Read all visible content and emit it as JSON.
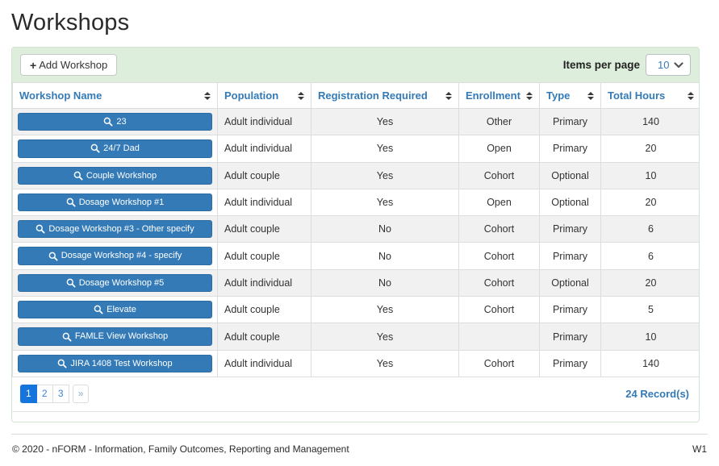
{
  "page": {
    "title": "Workshops"
  },
  "toolbar": {
    "add_button_label": "Add Workshop",
    "add_icon": "+",
    "items_per_page_label": "Items per page",
    "items_per_page_value": "10"
  },
  "table": {
    "columns": [
      "Workshop Name",
      "Population",
      "Registration Required",
      "Enrollment",
      "Type",
      "Total Hours"
    ],
    "rows": [
      {
        "name": "23",
        "population": "Adult individual",
        "registration_required": "Yes",
        "enrollment": "Other",
        "type": "Primary",
        "total_hours": "140"
      },
      {
        "name": "24/7 Dad",
        "population": "Adult individual",
        "registration_required": "Yes",
        "enrollment": "Open",
        "type": "Primary",
        "total_hours": "20"
      },
      {
        "name": "Couple Workshop",
        "population": "Adult couple",
        "registration_required": "Yes",
        "enrollment": "Cohort",
        "type": "Optional",
        "total_hours": "10"
      },
      {
        "name": "Dosage Workshop #1",
        "population": "Adult individual",
        "registration_required": "Yes",
        "enrollment": "Open",
        "type": "Optional",
        "total_hours": "20"
      },
      {
        "name": "Dosage Workshop #3 - Other specify",
        "population": "Adult couple",
        "registration_required": "No",
        "enrollment": "Cohort",
        "type": "Primary",
        "total_hours": "6"
      },
      {
        "name": "Dosage Workshop #4 - specify",
        "population": "Adult couple",
        "registration_required": "No",
        "enrollment": "Cohort",
        "type": "Primary",
        "total_hours": "6"
      },
      {
        "name": "Dosage Workshop #5",
        "population": "Adult individual",
        "registration_required": "No",
        "enrollment": "Cohort",
        "type": "Optional",
        "total_hours": "20"
      },
      {
        "name": "Elevate",
        "population": "Adult couple",
        "registration_required": "Yes",
        "enrollment": "Cohort",
        "type": "Primary",
        "total_hours": "5"
      },
      {
        "name": "FAMLE View Workshop",
        "population": "Adult couple",
        "registration_required": "Yes",
        "enrollment": "",
        "type": "Primary",
        "total_hours": "10"
      },
      {
        "name": "JIRA 1408 Test Workshop",
        "population": "Adult individual",
        "registration_required": "Yes",
        "enrollment": "Cohort",
        "type": "Primary",
        "total_hours": "140"
      }
    ]
  },
  "pagination": {
    "pages": [
      "1",
      "2",
      "3"
    ],
    "active": "1",
    "next_label": "»",
    "record_count": "24 Record(s)"
  },
  "footer": {
    "copyright": "© 2020 - nFORM - Information, Family Outcomes, Reporting and Management",
    "version": "W1"
  },
  "colors": {
    "accent_blue": "#337ab7",
    "toolbar_green": "#ddefdc",
    "active_page_blue": "#1674dd",
    "row_stripe": "#f1f1f1"
  }
}
